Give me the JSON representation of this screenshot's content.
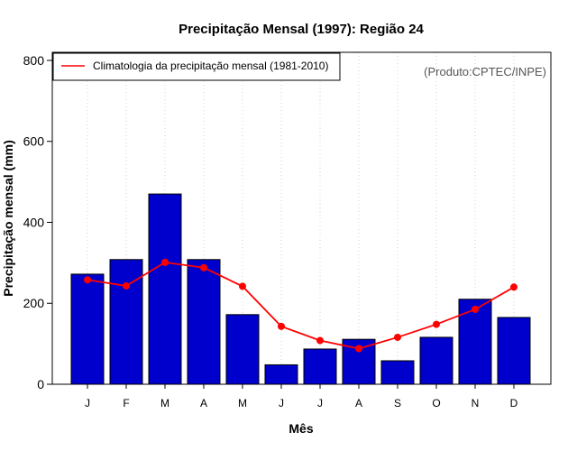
{
  "chart_data": {
    "type": "bar",
    "title": "Precipitação Mensal (1997): Região 24",
    "xlabel": "Mês",
    "ylabel": "Precipitação mensal (mm)",
    "source": "(Produto:CPTEC/INPE)",
    "categories": [
      "J",
      "F",
      "M",
      "A",
      "M",
      "J",
      "J",
      "A",
      "S",
      "O",
      "N",
      "D"
    ],
    "ylim": [
      0,
      820
    ],
    "yticks": [
      0,
      200,
      400,
      600,
      800
    ],
    "series": [
      {
        "name": "Precipitação mensal (1997)",
        "type": "bar",
        "color": "#0000cc",
        "values": [
          272,
          308,
          470,
          308,
          172,
          48,
          87,
          111,
          58,
          116,
          210,
          165
        ]
      },
      {
        "name": "Climatologia da precipitação mensal (1981-2010)",
        "type": "line",
        "color": "#ff0000",
        "values": [
          258,
          243,
          301,
          288,
          242,
          143,
          108,
          88,
          116,
          148,
          185,
          240
        ]
      }
    ],
    "legend": {
      "position": "top-left",
      "entries": [
        "Climatologia da precipitação mensal (1981-2010)"
      ]
    },
    "grid": "vertical-dotted"
  }
}
